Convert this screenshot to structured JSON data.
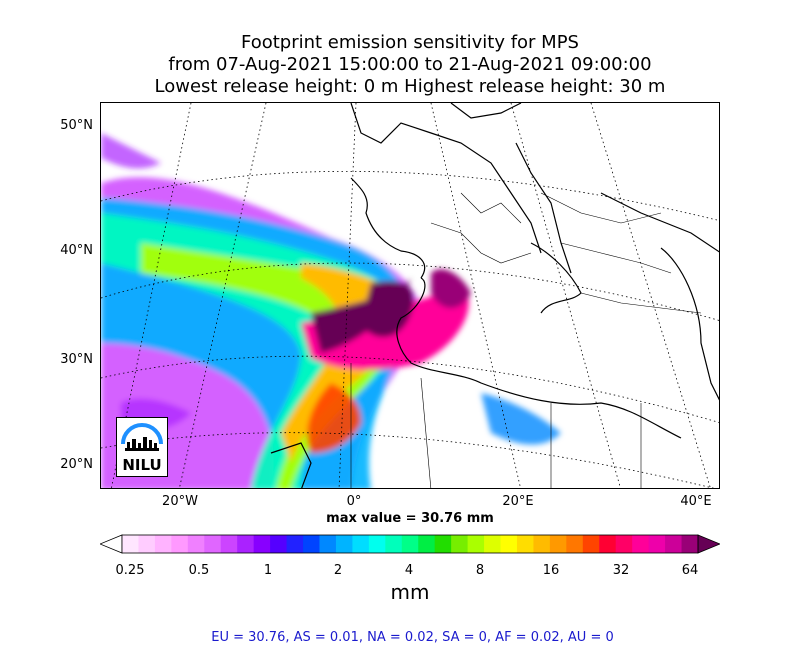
{
  "title": {
    "line1": "Footprint emission sensitivity for MPS",
    "line2": "from 07-Aug-2021 15:00:00 to 21-Aug-2021 09:00:00",
    "line3": "Lowest release height: 0 m      Highest release height: 30 m"
  },
  "axes": {
    "lat_labels": [
      "50°N",
      "40°N",
      "30°N",
      "20°N"
    ],
    "lon_labels": [
      "20°W",
      "0°",
      "20°E",
      "40°E"
    ]
  },
  "max_value_text": "max value = 30.76 mm",
  "colorbar": {
    "tick_labels": [
      "0.25",
      "0.5",
      "1",
      "2",
      "4",
      "8",
      "16",
      "32",
      "64"
    ],
    "unit": "mm",
    "colors": [
      "#ffffff",
      "#ffe6ff",
      "#ffccff",
      "#ffb3ff",
      "#ff99ff",
      "#f080ff",
      "#e066ff",
      "#cc44ff",
      "#aa22ff",
      "#8800ff",
      "#5500ff",
      "#2222ff",
      "#0044ff",
      "#0088ff",
      "#00b4ff",
      "#00ddff",
      "#00ffee",
      "#00ffbb",
      "#00ff88",
      "#00ee44",
      "#22dd00",
      "#77ee00",
      "#aaff00",
      "#ddff00",
      "#ffff00",
      "#ffdd00",
      "#ffbb00",
      "#ff9900",
      "#ff7700",
      "#ff4400",
      "#ff0033",
      "#ff0066",
      "#ff0099",
      "#ee00aa",
      "#cc0099",
      "#990077",
      "#660055"
    ]
  },
  "logo": {
    "text": "NILU"
  },
  "region_summary": "EU = 30.76,  AS = 0.01,  NA = 0.02,  SA = 0,  AF = 0.02,  AU = 0"
}
